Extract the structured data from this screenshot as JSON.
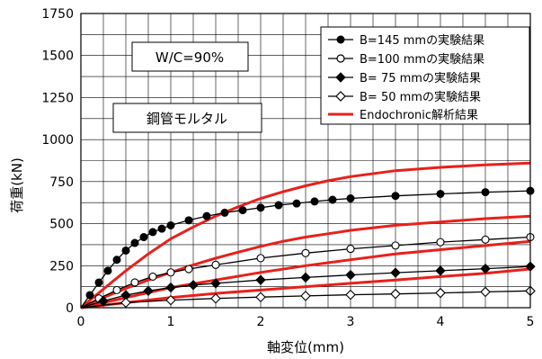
{
  "chart_data": {
    "type": "line",
    "title": "",
    "xlabel": "軸変位(mm)",
    "ylabel": "荷重(kN)",
    "xlim": [
      0,
      5
    ],
    "ylim": [
      0,
      1750
    ],
    "xticks": [
      0,
      1,
      2,
      3,
      4,
      5
    ],
    "yticks": [
      0,
      250,
      500,
      750,
      1000,
      1250,
      1500,
      1750
    ],
    "grid": true,
    "legend_position": "top-right",
    "annotations": [
      "W/C=90%",
      "鋼管モルタル"
    ],
    "series": [
      {
        "name": "B=145 mmの実験結果",
        "marker": "filled-circle",
        "color": "#000000",
        "x": [
          0.0,
          0.1,
          0.2,
          0.3,
          0.4,
          0.5,
          0.6,
          0.7,
          0.8,
          0.9,
          1.0,
          1.2,
          1.4,
          1.6,
          1.8,
          2.0,
          2.2,
          2.4,
          2.6,
          2.8,
          3.0,
          3.5,
          4.0,
          4.5,
          5.0
        ],
        "y": [
          0,
          75,
          150,
          220,
          285,
          340,
          385,
          420,
          450,
          470,
          490,
          520,
          545,
          565,
          580,
          595,
          610,
          620,
          632,
          642,
          650,
          665,
          677,
          687,
          695
        ]
      },
      {
        "name": "B=100 mmの実験結果",
        "marker": "open-circle",
        "color": "#000000",
        "x": [
          0.0,
          0.2,
          0.4,
          0.6,
          0.8,
          1.0,
          1.2,
          1.5,
          2.0,
          2.5,
          3.0,
          3.5,
          4.0,
          4.5,
          5.0
        ],
        "y": [
          0,
          55,
          105,
          150,
          185,
          210,
          230,
          255,
          295,
          325,
          350,
          370,
          390,
          405,
          420
        ]
      },
      {
        "name": "B= 75 mmの実験結果",
        "marker": "filled-diamond",
        "color": "#000000",
        "x": [
          0.0,
          0.25,
          0.5,
          0.75,
          1.0,
          1.25,
          1.5,
          2.0,
          2.5,
          3.0,
          3.5,
          4.0,
          4.5,
          5.0
        ],
        "y": [
          0,
          40,
          75,
          100,
          120,
          135,
          145,
          165,
          180,
          195,
          208,
          220,
          232,
          245
        ]
      },
      {
        "name": "B= 50 mmの実験結果",
        "marker": "open-diamond",
        "color": "#000000",
        "x": [
          0.0,
          0.5,
          1.0,
          1.5,
          2.0,
          2.5,
          3.0,
          3.5,
          4.0,
          4.5,
          5.0
        ],
        "y": [
          0,
          30,
          45,
          55,
          63,
          70,
          77,
          82,
          88,
          94,
          100
        ]
      },
      {
        "name": "Endochronic解析結果",
        "marker": "none",
        "color": "#e8201b",
        "curves": [
          {
            "x": [
              0.0,
              0.25,
              0.5,
              0.75,
              1.0,
              1.25,
              1.5,
              1.75,
              2.0,
              2.25,
              2.5,
              2.75,
              3.0,
              3.5,
              4.0,
              4.5,
              5.0
            ],
            "y": [
              0,
              110,
              220,
              320,
              410,
              480,
              545,
              600,
              650,
              690,
              725,
              755,
              780,
              815,
              835,
              850,
              860
            ]
          },
          {
            "x": [
              0.0,
              0.25,
              0.5,
              0.75,
              1.0,
              1.25,
              1.5,
              1.75,
              2.0,
              2.25,
              2.5,
              2.75,
              3.0,
              3.5,
              4.0,
              4.5,
              5.0
            ],
            "y": [
              0,
              60,
              115,
              165,
              210,
              255,
              295,
              330,
              365,
              395,
              420,
              440,
              460,
              490,
              510,
              530,
              545
            ]
          },
          {
            "x": [
              0.0,
              0.5,
              1.0,
              1.5,
              2.0,
              2.5,
              3.0,
              3.5,
              4.0,
              4.5,
              5.0
            ],
            "y": [
              0,
              60,
              120,
              165,
              210,
              250,
              285,
              320,
              345,
              370,
              395
            ]
          },
          {
            "x": [
              0.0,
              0.5,
              1.0,
              1.5,
              2.0,
              2.5,
              3.0,
              3.5,
              4.0,
              4.5,
              5.0
            ],
            "y": [
              0,
              30,
              60,
              85,
              105,
              125,
              145,
              165,
              185,
              205,
              230
            ]
          }
        ]
      }
    ]
  },
  "colors": {
    "analysis": "#e8201b",
    "experiment": "#000000",
    "grid": "#000000",
    "background": "#ffffff"
  }
}
